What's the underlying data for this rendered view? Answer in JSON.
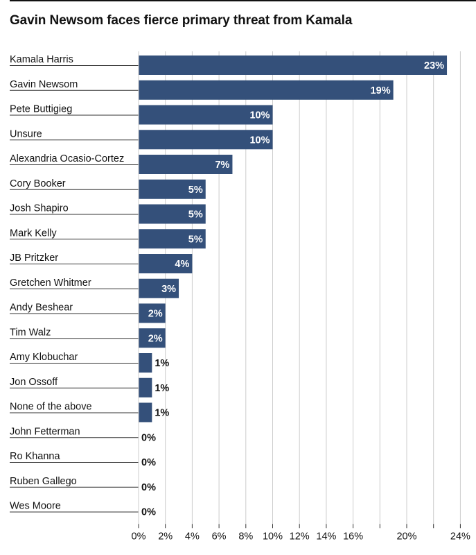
{
  "chart_data": {
    "type": "bar",
    "orientation": "horizontal",
    "title": "Gavin Newsom faces fierce primary threat from Kamala",
    "categories": [
      "Kamala Harris",
      "Gavin Newsom",
      "Pete Buttigieg",
      "Unsure",
      "Alexandria Ocasio-Cortez",
      "Cory Booker",
      "Josh Shapiro",
      "Mark Kelly",
      "JB Pritzker",
      "Gretchen Whitmer",
      "Andy Beshear",
      "Tim Walz",
      "Amy Klobuchar",
      "Jon Ossoff",
      "None of the above",
      "John Fetterman",
      "Ro Khanna",
      "Ruben Gallego",
      "Wes Moore"
    ],
    "values": [
      23,
      19,
      10,
      10,
      7,
      5,
      5,
      5,
      4,
      3,
      2,
      2,
      1,
      1,
      1,
      0,
      0,
      0,
      0
    ],
    "value_labels": [
      "23%",
      "19%",
      "10%",
      "10%",
      "7%",
      "5%",
      "5%",
      "5%",
      "4%",
      "3%",
      "2%",
      "2%",
      "1%",
      "1%",
      "1%",
      "0%",
      "0%",
      "0%",
      "0%"
    ],
    "x_ticks": [
      0,
      2,
      4,
      6,
      8,
      10,
      12,
      14,
      16,
      18,
      20,
      22,
      24
    ],
    "x_tick_labels": [
      "0%",
      "2%",
      "4%",
      "6%",
      "8%",
      "10%",
      "12%",
      "14%",
      "16%",
      "",
      "20%",
      "",
      "24%"
    ],
    "xlim": [
      0,
      24
    ],
    "xlabel": "",
    "ylabel": "",
    "grid": true,
    "legend": "none",
    "colors": {
      "bar": "#34507a",
      "bar_label_inside": "#ffffff",
      "bar_label_outside": "#111111",
      "grid": "#cccccc",
      "axis": "#333333",
      "text": "#111111"
    }
  }
}
